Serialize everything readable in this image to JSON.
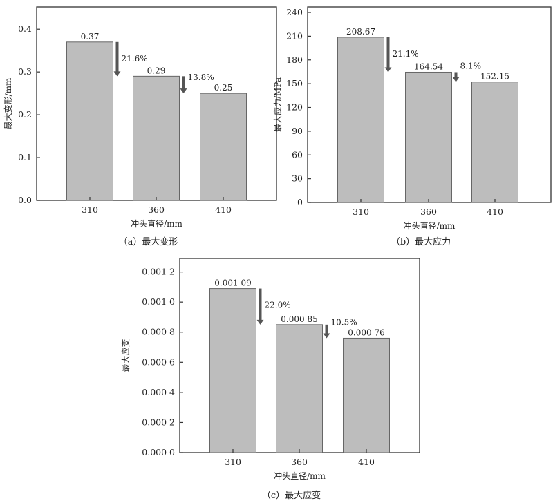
{
  "chart_data": [
    {
      "type": "bar",
      "id": "a",
      "caption": "（a）最大变形",
      "xlabel": "冲头直径/mm",
      "ylabel": "最大变形/mm",
      "categories": [
        "310",
        "360",
        "410"
      ],
      "values": [
        0.37,
        0.29,
        0.25
      ],
      "value_labels": [
        "0.37",
        "0.29",
        "0.25"
      ],
      "ylim": [
        0,
        0.452
      ],
      "yticks": [
        0,
        0.1,
        0.2,
        0.3,
        0.4
      ],
      "ytick_labels": [
        "0.0",
        "0.1",
        "0.2",
        "0.3",
        "0.4"
      ],
      "annotations": [
        {
          "from": 0,
          "to": 1,
          "text": "21.6%"
        },
        {
          "from": 1,
          "to": 2,
          "text": "13.8%"
        }
      ],
      "bar_color": "#bdbdbd",
      "arrow_color": "#555555",
      "grid": false
    },
    {
      "type": "bar",
      "id": "b",
      "caption": "（b）最大应力",
      "xlabel": "冲头直径/mm",
      "ylabel": "最大应力/MPa",
      "categories": [
        "310",
        "360",
        "410"
      ],
      "values": [
        208.67,
        164.54,
        152.15
      ],
      "value_labels": [
        "208.67",
        "164.54",
        "152.15"
      ],
      "ylim": [
        0,
        247
      ],
      "yticks": [
        0,
        30,
        60,
        90,
        120,
        150,
        180,
        210,
        240
      ],
      "ytick_labels": [
        "0",
        "30",
        "60",
        "90",
        "120",
        "150",
        "180",
        "210",
        "240"
      ],
      "annotations": [
        {
          "from": 0,
          "to": 1,
          "text": "21.1%"
        },
        {
          "from": 1,
          "to": 2,
          "text": "8.1%"
        }
      ],
      "bar_color": "#bdbdbd",
      "arrow_color": "#555555",
      "grid": false
    },
    {
      "type": "bar",
      "id": "c",
      "caption": "（c）最大应变",
      "xlabel": "冲头直径/mm",
      "ylabel": "最大应变",
      "categories": [
        "310",
        "360",
        "410"
      ],
      "values": [
        0.00109,
        0.00085,
        0.00076
      ],
      "value_labels": [
        "0.001 09",
        "0.000 85",
        "0.000 76"
      ],
      "ylim": [
        0,
        0.00129
      ],
      "yticks": [
        0,
        0.0002,
        0.0004,
        0.0006,
        0.0008,
        0.001,
        0.0012
      ],
      "ytick_labels": [
        "0.000 0",
        "0.000 2",
        "0.000 4",
        "0.000 6",
        "0.000 8",
        "0.001 0",
        "0.001 2"
      ],
      "annotations": [
        {
          "from": 0,
          "to": 1,
          "text": "22.0%"
        },
        {
          "from": 1,
          "to": 2,
          "text": "10.5%"
        }
      ],
      "bar_color": "#bdbdbd",
      "arrow_color": "#555555",
      "grid": false
    }
  ]
}
